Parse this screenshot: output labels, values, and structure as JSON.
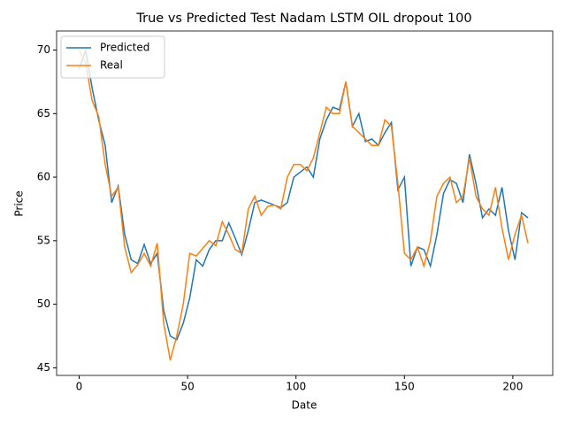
{
  "chart_data": {
    "type": "line",
    "title": "True vs Predicted Test  Nadam LSTM OIL dropout 100",
    "x_label": "Date",
    "y_label": "Price",
    "x": [
      0,
      3,
      6,
      9,
      12,
      15,
      18,
      21,
      24,
      27,
      30,
      33,
      36,
      39,
      42,
      45,
      48,
      51,
      54,
      57,
      60,
      63,
      66,
      69,
      72,
      75,
      78,
      81,
      84,
      87,
      90,
      93,
      96,
      99,
      102,
      105,
      108,
      111,
      114,
      117,
      120,
      123,
      126,
      129,
      132,
      135,
      138,
      141,
      144,
      147,
      150,
      153,
      156,
      159,
      162,
      165,
      168,
      171,
      174,
      177,
      180,
      183,
      186,
      189,
      192,
      195,
      198,
      201,
      204,
      207
    ],
    "series": [
      {
        "name": "Predicted",
        "color": "#1f77b4",
        "values": [
          68.5,
          70,
          67,
          64.5,
          62.5,
          58,
          59.3,
          55.5,
          53.5,
          53.2,
          54.7,
          53.2,
          54,
          49.5,
          47.5,
          47.2,
          48.5,
          50.5,
          53.5,
          53,
          54.3,
          55,
          55,
          56.4,
          55.2,
          53.9,
          55.8,
          58,
          58.2,
          58,
          57.8,
          57.6,
          58,
          60,
          60.4,
          60.8,
          60,
          63,
          64.5,
          65.5,
          65.3,
          67.5,
          64,
          65,
          62.8,
          63,
          62.5,
          63.5,
          64.3,
          59,
          60,
          53,
          54.5,
          54.3,
          53,
          55.5,
          58.7,
          59.8,
          59.5,
          58,
          61.8,
          59.5,
          56.8,
          57.5,
          57,
          59.2,
          55.8,
          53.5,
          57.2,
          56.8
        ]
      },
      {
        "name": "Real",
        "color": "#ff7f0e",
        "values": [
          70,
          69,
          66,
          64.8,
          61,
          58.5,
          59.2,
          54.5,
          52.5,
          53.1,
          54,
          53,
          54.8,
          48.5,
          45.6,
          47.5,
          50,
          54,
          53.8,
          54.4,
          55,
          54.6,
          56.5,
          55.5,
          54.3,
          54,
          57.5,
          58.5,
          57,
          57.7,
          57.8,
          57.5,
          60,
          61,
          61,
          60.5,
          61.5,
          63.5,
          65.5,
          65,
          65,
          67.5,
          64,
          63.5,
          63,
          62.5,
          62.5,
          64.5,
          64,
          59.5,
          54,
          53.5,
          54.5,
          53,
          55,
          58.5,
          59.5,
          60,
          58,
          58.5,
          61.5,
          58.5,
          57.5,
          57,
          59.2,
          56,
          53.5,
          55.5,
          57,
          54.8
        ]
      }
    ],
    "xlim": [
      -10.4,
      218.4
    ],
    "ylim": [
      44.4,
      71.5
    ],
    "xticks": [
      0,
      50,
      100,
      150,
      200
    ],
    "yticks": [
      45,
      50,
      55,
      60,
      65,
      70
    ],
    "legend": "upper-left",
    "grid": false
  }
}
